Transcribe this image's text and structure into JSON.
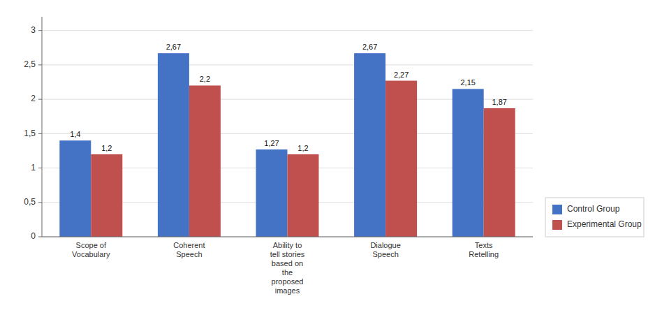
{
  "chart_data": {
    "type": "bar",
    "categories": [
      "Scope of\nVocabulary",
      "Coherent\nSpeech",
      "Ability to\ntell stories\nbased on\nthe\nproposed\nimages",
      "Dialogue\nSpeech",
      "Texts\nRetelling"
    ],
    "series": [
      {
        "name": "Control Group",
        "color": "#4472C4",
        "values": [
          1.4,
          2.67,
          1.27,
          2.67,
          2.15
        ],
        "value_labels": [
          "1,4",
          "2,67",
          "1,27",
          "2,67",
          "2,15"
        ]
      },
      {
        "name": "Experimental Group",
        "color": "#C0504D",
        "values": [
          1.2,
          2.2,
          1.2,
          2.27,
          1.87
        ],
        "value_labels": [
          "1,2",
          "2,2",
          "1,2",
          "2,27",
          "1,87"
        ]
      }
    ],
    "ylim": [
      0,
      3.2
    ],
    "yticks": [
      0,
      {
        "value": 0.5,
        "label": "0,5"
      },
      1,
      {
        "value": 1.5,
        "label": "1,5"
      },
      2,
      {
        "value": 2.5,
        "label": "2,5"
      },
      3
    ],
    "grid": true,
    "legend": "lower right",
    "data_labels": true
  }
}
